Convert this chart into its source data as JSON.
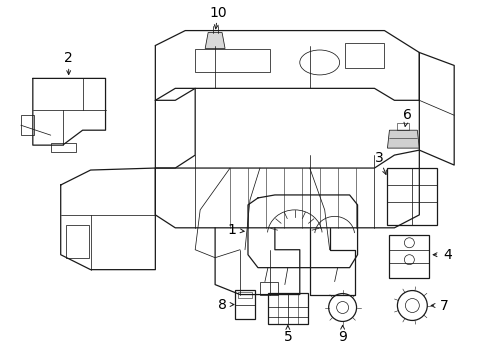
{
  "background_color": "#ffffff",
  "line_color": "#1a1a1a",
  "text_color": "#000000",
  "fig_width": 4.89,
  "fig_height": 3.6,
  "dpi": 100,
  "font_size": 10,
  "arrow_lw": 0.8,
  "main_lw": 0.9,
  "thin_lw": 0.55
}
